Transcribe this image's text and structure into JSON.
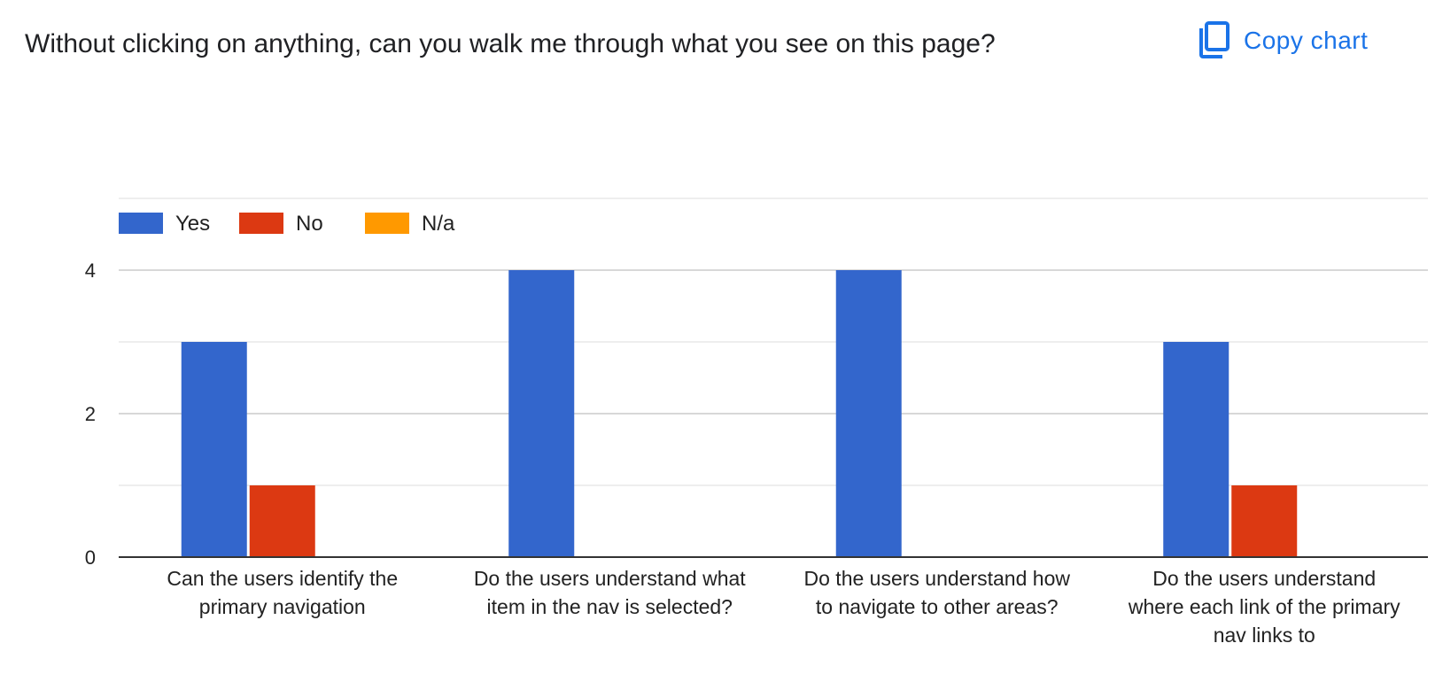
{
  "question": {
    "title": "Without clicking on anything, can you walk me through what you see on this page?"
  },
  "toolbar": {
    "copy_label": "Copy chart",
    "copy_icon": "copy-icon"
  },
  "colors": {
    "accent": "#1a73e8",
    "yes": "#3366cc",
    "no": "#dc3912",
    "na": "#ff9900",
    "gridline": "#cccccc",
    "minor_gridline": "#e8e8e8",
    "baseline": "#333333"
  },
  "chart_data": {
    "type": "bar",
    "title": "",
    "xlabel": "",
    "ylabel": "",
    "ylim": [
      0,
      5
    ],
    "yticks": [
      0,
      2,
      4
    ],
    "grid": true,
    "legend_position": "top-left",
    "categories": [
      [
        "Can the users identify the",
        "primary navigation"
      ],
      [
        "Do the users understand what",
        "item in the nav is selected?"
      ],
      [
        "Do the users understand how",
        "to navigate to other areas?"
      ],
      [
        "Do the users understand",
        "where each link of the primary",
        "nav links to"
      ]
    ],
    "series": [
      {
        "name": "Yes",
        "color": "#3366cc",
        "values": [
          3,
          4,
          4,
          3
        ]
      },
      {
        "name": "No",
        "color": "#dc3912",
        "values": [
          1,
          0,
          0,
          1
        ]
      },
      {
        "name": "N/a",
        "color": "#ff9900",
        "values": [
          0,
          0,
          0,
          0
        ]
      }
    ]
  }
}
